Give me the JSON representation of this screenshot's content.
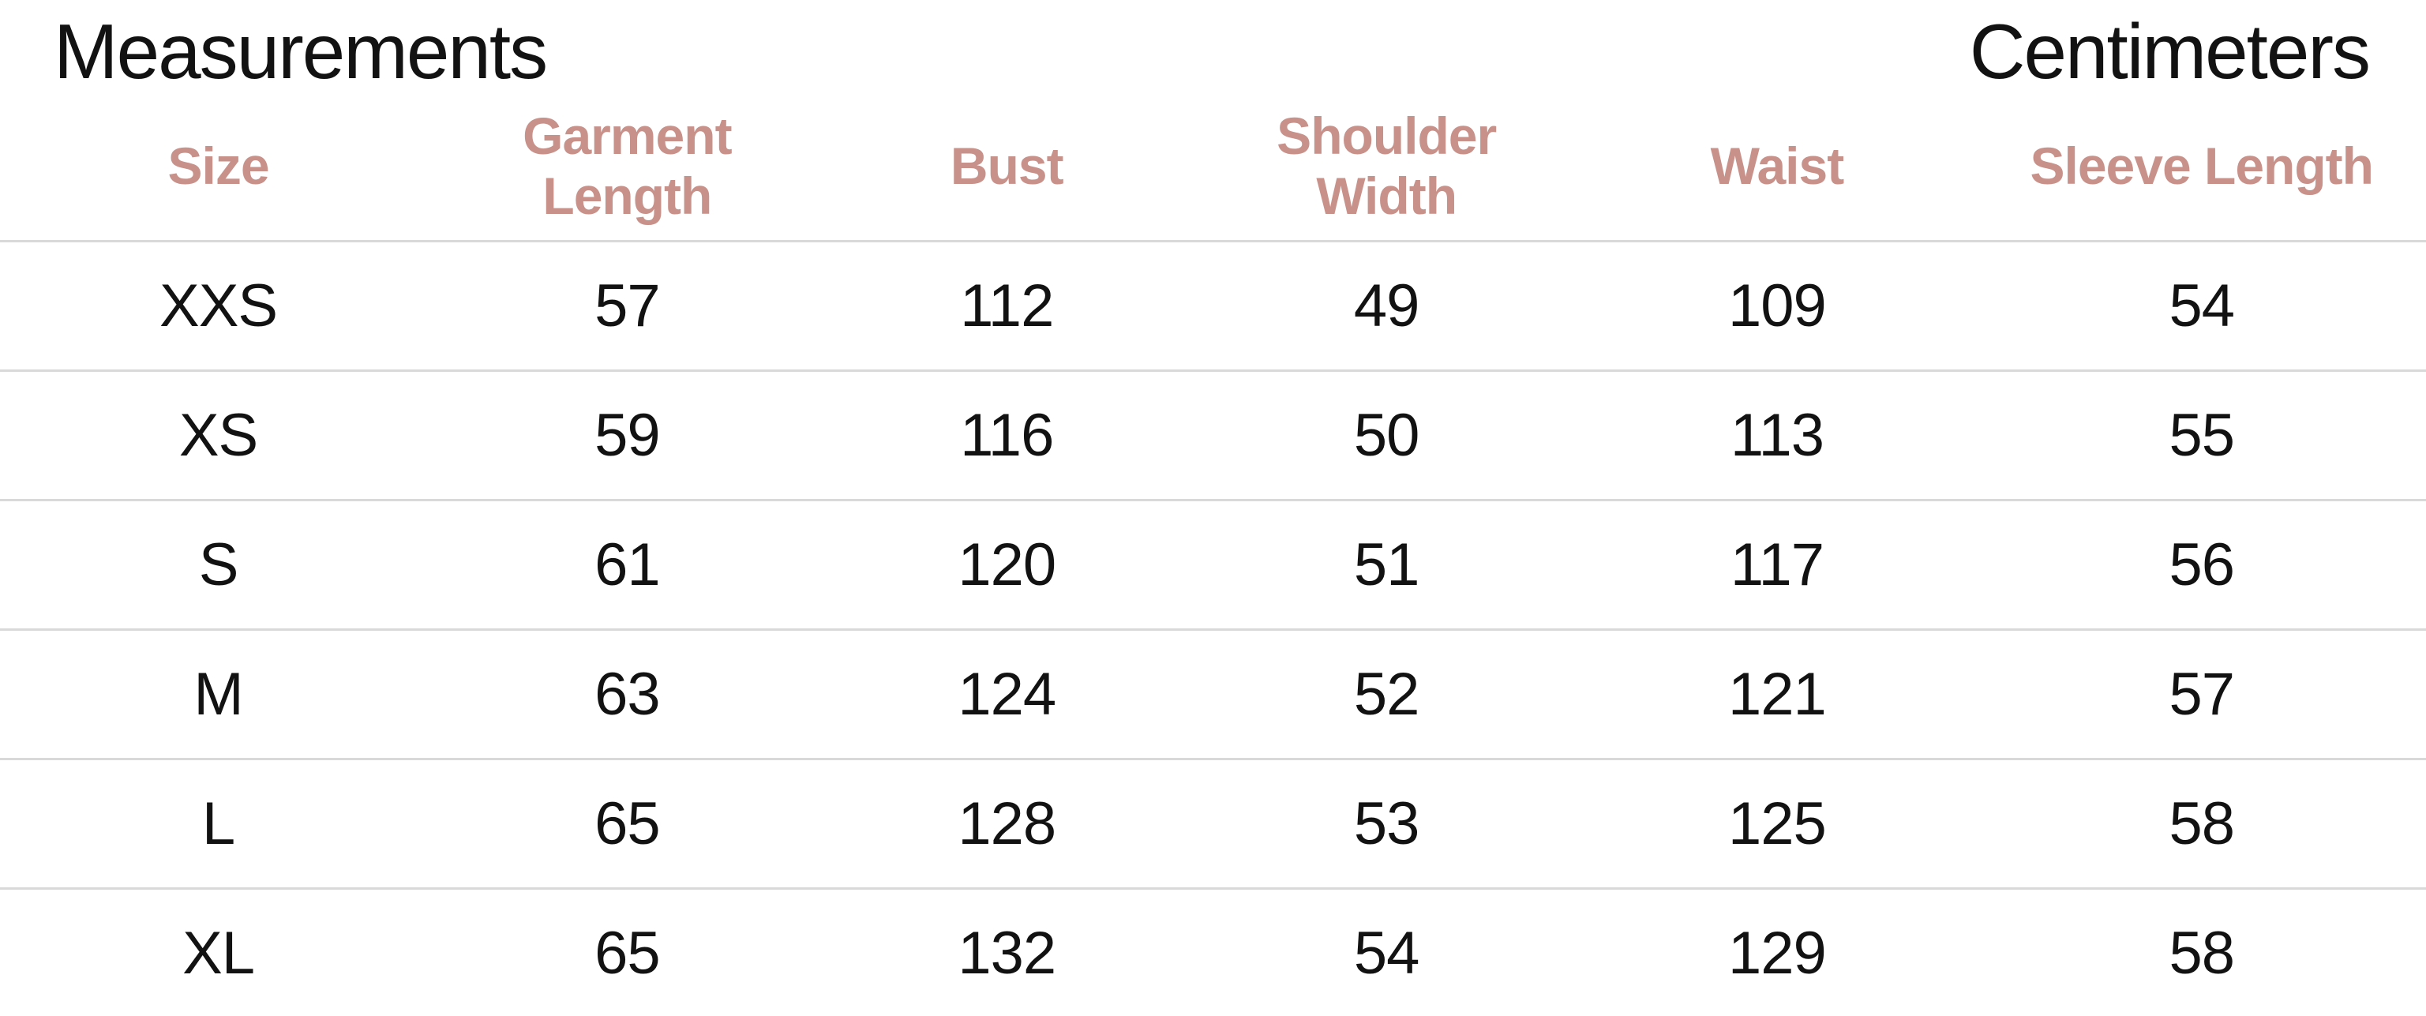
{
  "title": "Measurements",
  "unit_label": "Centimeters",
  "colors": {
    "background": "#ffffff",
    "header_text": "#c8918a",
    "body_text": "#121212",
    "divider": "#d9d9d9"
  },
  "table": {
    "columns": [
      "Size",
      "Garment\nLength",
      "Bust",
      "Shoulder\nWidth",
      "Waist",
      "Sleeve Length"
    ],
    "rows": [
      [
        "XXS",
        "57",
        "112",
        "49",
        "109",
        "54"
      ],
      [
        "XS",
        "59",
        "116",
        "50",
        "113",
        "55"
      ],
      [
        "S",
        "61",
        "120",
        "51",
        "117",
        "56"
      ],
      [
        "M",
        "63",
        "124",
        "52",
        "121",
        "57"
      ],
      [
        "L",
        "65",
        "128",
        "53",
        "125",
        "58"
      ],
      [
        "XL",
        "65",
        "132",
        "54",
        "129",
        "58"
      ]
    ]
  }
}
